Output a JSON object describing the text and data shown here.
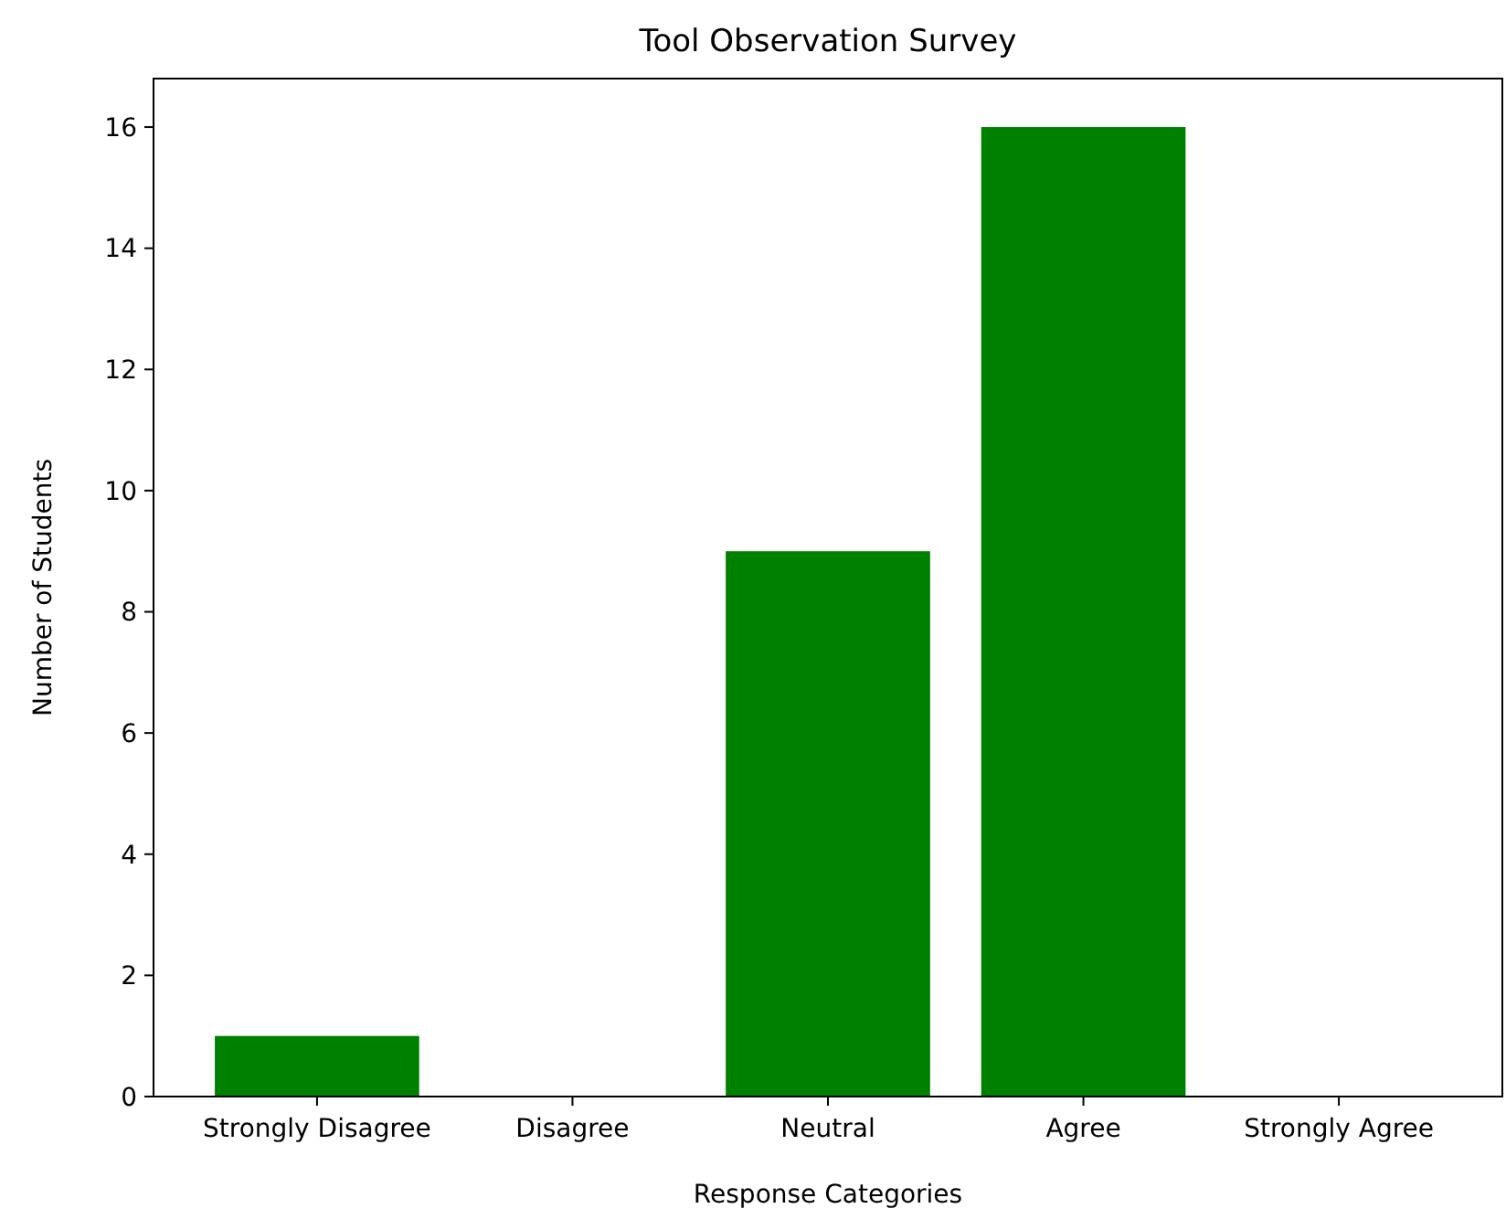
{
  "chart_data": {
    "type": "bar",
    "title": "Tool Observation Survey",
    "xlabel": "Response Categories",
    "ylabel": "Number of Students",
    "categories": [
      "Strongly Disagree",
      "Disagree",
      "Neutral",
      "Agree",
      "Strongly Agree"
    ],
    "values": [
      1,
      0,
      9,
      16,
      0
    ],
    "color": "#008000",
    "ylim": [
      0,
      16.8
    ],
    "yticks": [
      0,
      2,
      4,
      6,
      8,
      10,
      12,
      14,
      16
    ]
  }
}
